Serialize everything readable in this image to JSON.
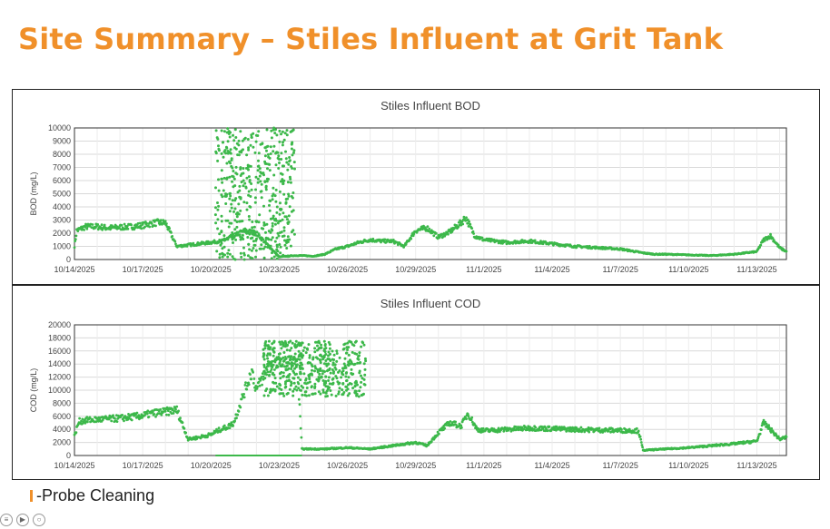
{
  "page": {
    "title": "Site Summary – Stiles Influent at Grit Tank"
  },
  "legend": {
    "marker_color": "#f0902a",
    "label": "-Probe Cleaning"
  },
  "chart_data": [
    {
      "id": "bod",
      "type": "scatter",
      "title": "Stiles Influent BOD",
      "xlabel": "",
      "ylabel": "BOD (mg/L)",
      "ylim": [
        0,
        10000
      ],
      "yticks": [
        0,
        1000,
        2000,
        3000,
        4000,
        5000,
        6000,
        7000,
        8000,
        9000,
        10000
      ],
      "xticks": [
        "10/14/2025",
        "10/17/2025",
        "10/20/2025",
        "10/23/2025",
        "10/26/2025",
        "10/29/2025",
        "11/1/2025",
        "11/4/2025",
        "11/7/2025",
        "11/10/2025",
        "11/13/2025"
      ],
      "xlim_days": [
        0,
        31.3
      ],
      "color": "#3cb84a",
      "series": [
        {
          "name": "BOD",
          "x_days": [
            0,
            0.1,
            0.5,
            1,
            1.5,
            2,
            2.5,
            3,
            3.3,
            3.6,
            4,
            4.5,
            5,
            5.5,
            6,
            6.2,
            6.35,
            6.5,
            7,
            7.5,
            8,
            9,
            9.3,
            9.7,
            10,
            10.5,
            11,
            11.5,
            12,
            12.5,
            13,
            13.5,
            14,
            14.5,
            15,
            15.5,
            16,
            16.5,
            17,
            17.2,
            17.6,
            18,
            18.5,
            19,
            19.5,
            20,
            21,
            22,
            23,
            24,
            25,
            25.5,
            26,
            27,
            28,
            29,
            29.5,
            30,
            30.3,
            30.6,
            31,
            31.3
          ],
          "values": [
            1000,
            2200,
            2500,
            2500,
            2400,
            2450,
            2500,
            2600,
            2700,
            2800,
            2800,
            1000,
            1100,
            1200,
            1300,
            1350,
            1380,
            1400,
            1800,
            2200,
            2000,
            200,
            250,
            300,
            300,
            250,
            400,
            800,
            1000,
            1300,
            1500,
            1400,
            1400,
            1000,
            2200,
            2400,
            1700,
            2100,
            2800,
            3200,
            1800,
            1500,
            1400,
            1300,
            1350,
            1400,
            1200,
            1000,
            900,
            800,
            500,
            400,
            400,
            350,
            300,
            400,
            500,
            600,
            1500,
            1800,
            900,
            600
          ]
        }
      ],
      "scatter_window_days": [
        6.2,
        9.7
      ],
      "scatter_range": [
        0,
        10000
      ]
    },
    {
      "id": "cod",
      "type": "scatter",
      "title": "Stiles Influent COD",
      "xlabel": "",
      "ylabel": "COD (mg/L)",
      "ylim": [
        0,
        20000
      ],
      "yticks": [
        0,
        2000,
        4000,
        6000,
        8000,
        10000,
        12000,
        14000,
        16000,
        18000,
        20000
      ],
      "xticks": [
        "10/14/2025",
        "10/17/2025",
        "10/20/2025",
        "10/23/2025",
        "10/26/2025",
        "10/29/2025",
        "11/1/2025",
        "11/4/2025",
        "11/7/2025",
        "11/10/2025",
        "11/13/2025"
      ],
      "xlim_days": [
        0,
        31.3
      ],
      "color": "#3cb84a",
      "series": [
        {
          "name": "COD",
          "x_days": [
            0,
            0.2,
            0.5,
            1,
            2,
            3,
            3.5,
            4,
            4.5,
            5,
            5.5,
            6,
            6.3,
            6.8,
            7,
            7.5,
            7.8,
            8,
            8.5,
            9,
            9.5,
            9.8,
            10,
            11,
            12,
            13,
            14,
            15,
            15.5,
            16,
            16.5,
            17,
            17.3,
            17.7,
            18,
            19,
            20,
            21,
            22,
            23,
            24.8,
            25,
            26,
            27,
            28,
            29,
            29.5,
            30,
            30.3,
            30.6,
            31,
            31.3
          ],
          "values": [
            3000,
            5200,
            5400,
            5500,
            5700,
            6100,
            6500,
            6700,
            7000,
            2500,
            2800,
            3200,
            3800,
            4500,
            5000,
            10000,
            13000,
            10000,
            13500,
            14000,
            13800,
            13500,
            1000,
            1000,
            1200,
            1000,
            1500,
            2000,
            1500,
            3500,
            5000,
            4500,
            6500,
            4000,
            3800,
            4000,
            4200,
            4100,
            4000,
            3900,
            3800,
            800,
            1000,
            1200,
            1500,
            1800,
            2000,
            2200,
            5000,
            4000,
            2500,
            2800
          ]
        }
      ],
      "scatter_window_days": [
        8.3,
        12.8
      ],
      "scatter_range": [
        9000,
        17500
      ],
      "zero_segment_days": [
        6.2,
        10
      ]
    }
  ]
}
